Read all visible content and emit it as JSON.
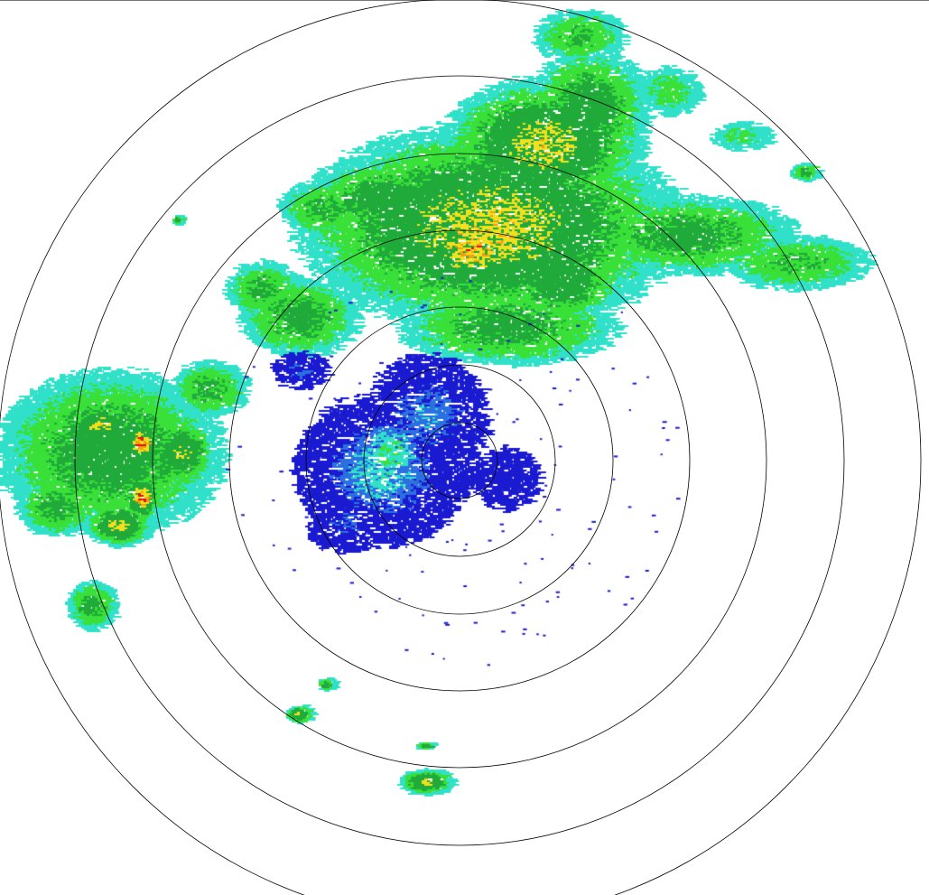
{
  "radar": {
    "range_ring_count": 7,
    "ring_color": "#000000",
    "palette": {
      "weak_blue": "#1a1ad0",
      "cyan": "#30e0c8",
      "light_green": "#38e038",
      "green": "#1faa3a",
      "yellow": "#f2e020",
      "orange": "#f0a010",
      "red": "#e01010"
    }
  }
}
